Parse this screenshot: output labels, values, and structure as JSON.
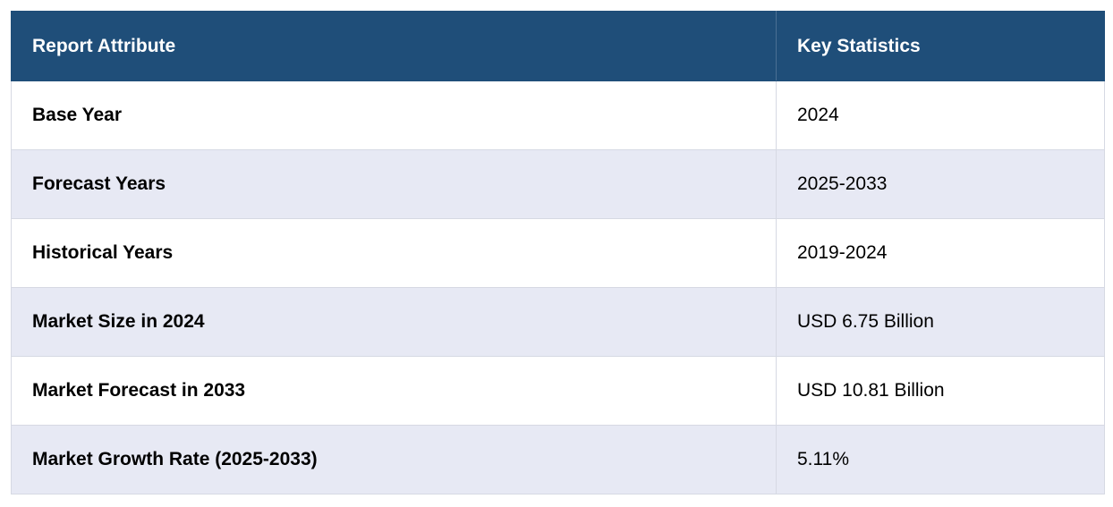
{
  "table": {
    "headers": [
      "Report Attribute",
      "Key Statistics"
    ],
    "rows": [
      {
        "attribute": "Base Year",
        "value": "2024"
      },
      {
        "attribute": "Forecast Years",
        "value": "2025-2033"
      },
      {
        "attribute": "Historical Years",
        "value": "2019-2024"
      },
      {
        "attribute": "Market Size in 2024",
        "value": "USD 6.75 Billion"
      },
      {
        "attribute": "Market Forecast in 2033",
        "value": "USD 10.81 Billion"
      },
      {
        "attribute": "Market Growth Rate (2025-2033)",
        "value": "5.11%"
      }
    ]
  },
  "colors": {
    "header_bg": "#1f4e79",
    "header_text": "#ffffff",
    "row_alt_bg": "#e7e9f4",
    "row_bg": "#ffffff"
  }
}
